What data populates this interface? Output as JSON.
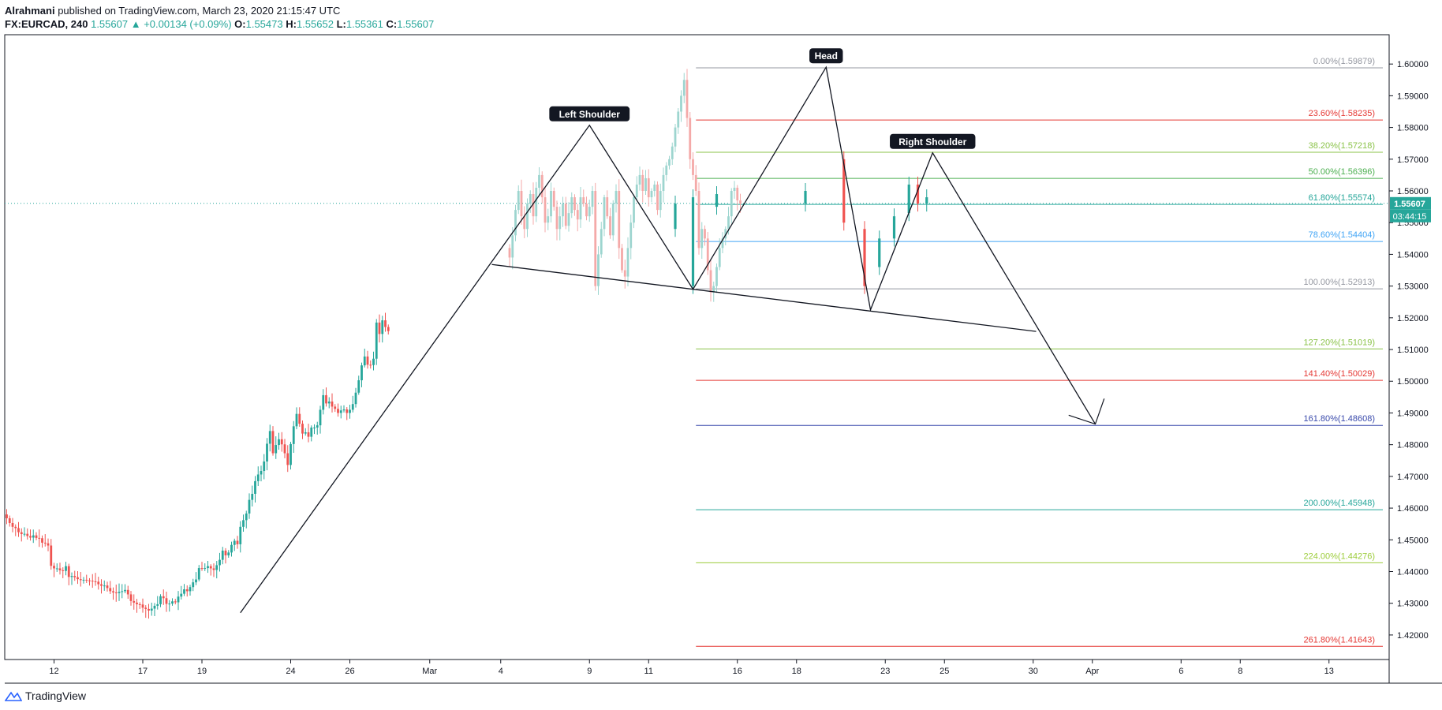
{
  "header": {
    "author": "Alrahmani",
    "published_text": "published on TradingView.com, March 23, 2020 21:15:47 UTC",
    "symbol": "FX:EURCAD, 240",
    "last": "1.55607",
    "arrow": "▲",
    "change": "+0.00134 (+0.09%)",
    "o_label": "O:",
    "o_value": "1.55473",
    "h_label": "H:",
    "h_value": "1.55652",
    "l_label": "L:",
    "l_value": "1.55361",
    "c_label": "C:",
    "c_value": "1.55607"
  },
  "footer": {
    "brand": "TradingView"
  },
  "price_badge": {
    "price": "1.55607",
    "countdown": "03:44:15"
  },
  "colors": {
    "up": "#26a69a",
    "down": "#ef5350",
    "up_faded": "#9dd5cf",
    "down_faded": "#f4a9a8",
    "badge": "#26a69a"
  },
  "chart_data": {
    "type": "candlestick",
    "title": "",
    "ylim": [
      1.4155,
      1.6085
    ],
    "y_ticks": [
      "1.60000",
      "1.59000",
      "1.58000",
      "1.57000",
      "1.56000",
      "1.55000",
      "1.54000",
      "1.53000",
      "1.52000",
      "1.51000",
      "1.50000",
      "1.49000",
      "1.48000",
      "1.47000",
      "1.46000",
      "1.45000",
      "1.44000",
      "1.43000",
      "1.42000"
    ],
    "x_ticks": [
      {
        "label": "12",
        "i": 16
      },
      {
        "label": "17",
        "i": 46
      },
      {
        "label": "19",
        "i": 66
      },
      {
        "label": "24",
        "i": 96
      },
      {
        "label": "26",
        "i": 116
      },
      {
        "label": "Mar",
        "i": 143
      },
      {
        "label": "4",
        "i": 167
      },
      {
        "label": "9",
        "i": 197
      },
      {
        "label": "11",
        "i": 217
      },
      {
        "label": "16",
        "i": 247
      },
      {
        "label": "18",
        "i": 267
      },
      {
        "label": "23",
        "i": 297
      },
      {
        "label": "25",
        "i": 317
      },
      {
        "label": "30",
        "i": 347
      },
      {
        "label": "Apr",
        "i": 367
      },
      {
        "label": "6",
        "i": 397
      },
      {
        "label": "8",
        "i": 417
      },
      {
        "label": "13",
        "i": 447
      }
    ],
    "closes": [
      1.4568,
      1.4553,
      1.4541,
      1.4537,
      1.4524,
      1.4518,
      1.4519,
      1.4512,
      1.4507,
      1.4514,
      1.4506,
      1.4505,
      1.4491,
      1.4489,
      1.4482,
      1.4418,
      1.441,
      1.441,
      1.4404,
      1.4402,
      1.4417,
      1.4383,
      1.4386,
      1.4382,
      1.4376,
      1.4373,
      1.4374,
      1.4372,
      1.4371,
      1.4369,
      1.4368,
      1.436,
      1.4355,
      1.4356,
      1.4348,
      1.4338,
      1.4334,
      1.4332,
      1.4336,
      1.4338,
      1.4342,
      1.4328,
      1.4307,
      1.4302,
      1.4297,
      1.4296,
      1.4286,
      1.4282,
      1.4277,
      1.4283,
      1.4292,
      1.4297,
      1.4322,
      1.4316,
      1.4298,
      1.4299,
      1.4306,
      1.4303,
      1.4321,
      1.433,
      1.4344,
      1.4338,
      1.4351,
      1.4366,
      1.4375,
      1.4411,
      1.441,
      1.4411,
      1.4417,
      1.441,
      1.4405,
      1.442,
      1.4437,
      1.4466,
      1.4451,
      1.446,
      1.4484,
      1.4497,
      1.4486,
      1.4541,
      1.4562,
      1.4583,
      1.4626,
      1.4645,
      1.4685,
      1.4706,
      1.4717,
      1.4747,
      1.4803,
      1.4843,
      1.4773,
      1.4799,
      1.4817,
      1.4801,
      1.4773,
      1.4736,
      1.4802,
      1.4858,
      1.4897,
      1.4866,
      1.4835,
      1.4839,
      1.4825,
      1.4854,
      1.4854,
      1.4861,
      1.491,
      1.4956,
      1.493,
      1.4936,
      1.492,
      1.4913,
      1.49,
      1.4908,
      1.4911,
      1.49,
      1.491,
      1.4928,
      1.4964,
      1.5003,
      1.505,
      1.5078,
      1.5052,
      1.5051,
      1.5071,
      1.5185,
      1.5149,
      1.5192,
      1.5171,
      1.5158
    ],
    "fib_levels": [
      {
        "label": "0.00%(1.59879)",
        "price": 1.59879,
        "color": "#9598a1"
      },
      {
        "label": "23.60%(1.58235)",
        "price": 1.58235,
        "color": "#e53935"
      },
      {
        "label": "38.20%(1.57218)",
        "price": 1.57218,
        "color": "#8bc34a"
      },
      {
        "label": "50.00%(1.56396)",
        "price": 1.56396,
        "color": "#4caf50"
      },
      {
        "label": "61.80%(1.55574)",
        "price": 1.55574,
        "color": "#26a69a"
      },
      {
        "label": "78.60%(1.54404)",
        "price": 1.54404,
        "color": "#42a5f5"
      },
      {
        "label": "100.00%(1.52913)",
        "price": 1.52913,
        "color": "#9598a1"
      },
      {
        "label": "127.20%(1.51019)",
        "price": 1.51019,
        "color": "#8bc34a"
      },
      {
        "label": "141.40%(1.50029)",
        "price": 1.50029,
        "color": "#e53935"
      },
      {
        "label": "161.80%(1.48608)",
        "price": 1.48608,
        "color": "#3949ab"
      },
      {
        "label": "200.00%(1.45948)",
        "price": 1.45948,
        "color": "#26a69a"
      },
      {
        "label": "224.00%(1.44276)",
        "price": 1.44276,
        "color": "#9ccc3a"
      },
      {
        "label": "261.80%(1.41643)",
        "price": 1.41643,
        "color": "#e53935"
      }
    ],
    "fib_start_i": 233,
    "pattern_labels": [
      {
        "text": "Left Shoulder",
        "i": 197,
        "price": 1.5807
      },
      {
        "text": "Head",
        "i": 277,
        "price": 1.599
      },
      {
        "text": "Right Shoulder",
        "i": 313,
        "price": 1.572
      }
    ],
    "pattern_points": [
      {
        "i": 79,
        "price": 1.427
      },
      {
        "i": 197,
        "price": 1.5807
      },
      {
        "i": 232,
        "price": 1.529
      },
      {
        "i": 277,
        "price": 1.599
      },
      {
        "i": 292,
        "price": 1.5225
      },
      {
        "i": 313,
        "price": 1.572
      },
      {
        "i": 368,
        "price": 1.4865
      }
    ],
    "neckline": [
      {
        "i": 164,
        "price": 1.5368
      },
      {
        "i": 348,
        "price": 1.5157
      }
    ],
    "arrow_head": [
      {
        "i": 359,
        "price": 1.4893
      },
      {
        "i": 368,
        "price": 1.4865
      },
      {
        "i": 371,
        "price": 1.4945
      }
    ],
    "last_price": 1.55607
  }
}
